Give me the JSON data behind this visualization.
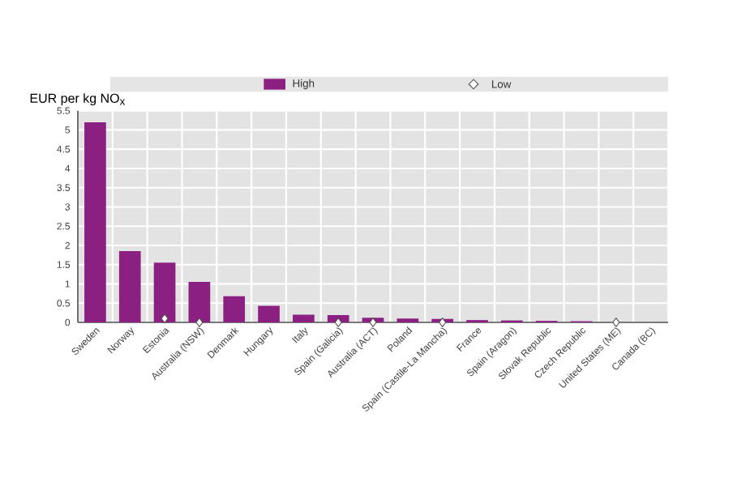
{
  "chart_data": {
    "type": "bar",
    "ylabel": "EUR per kg NO$_{x}$",
    "categories": [
      "Sweden",
      "Norway",
      "Estonia",
      "Australia (NSW)",
      "Denmark",
      "Hungary",
      "Italy",
      "Spain (Galicia)",
      "Australia (ACT)",
      "Poland",
      "Spain (Castile-La Mancha)",
      "France",
      "Spain (Aragon)",
      "Slovak Republic",
      "Czech Republic",
      "United States (ME)",
      "Canada (BC)"
    ],
    "series": [
      {
        "name": "High",
        "color": "#8b1f82",
        "values": [
          5.2,
          1.85,
          1.55,
          1.05,
          0.68,
          0.43,
          0.2,
          0.19,
          0.12,
          0.1,
          0.09,
          0.06,
          0.05,
          0.04,
          0.03,
          null,
          null
        ]
      },
      {
        "name": "Low",
        "type": "scatter",
        "marker": "diamond",
        "color": "#ffffff",
        "values": [
          null,
          null,
          0.1,
          0,
          null,
          null,
          null,
          0,
          0,
          null,
          0,
          null,
          null,
          null,
          null,
          0,
          null
        ]
      }
    ],
    "ylim": [
      0,
      5.5
    ],
    "yticks": [
      0,
      0.5,
      1,
      1.5,
      2,
      2.5,
      3,
      3.5,
      4,
      4.5,
      5,
      5.5
    ],
    "grid": true,
    "legend": "top"
  }
}
